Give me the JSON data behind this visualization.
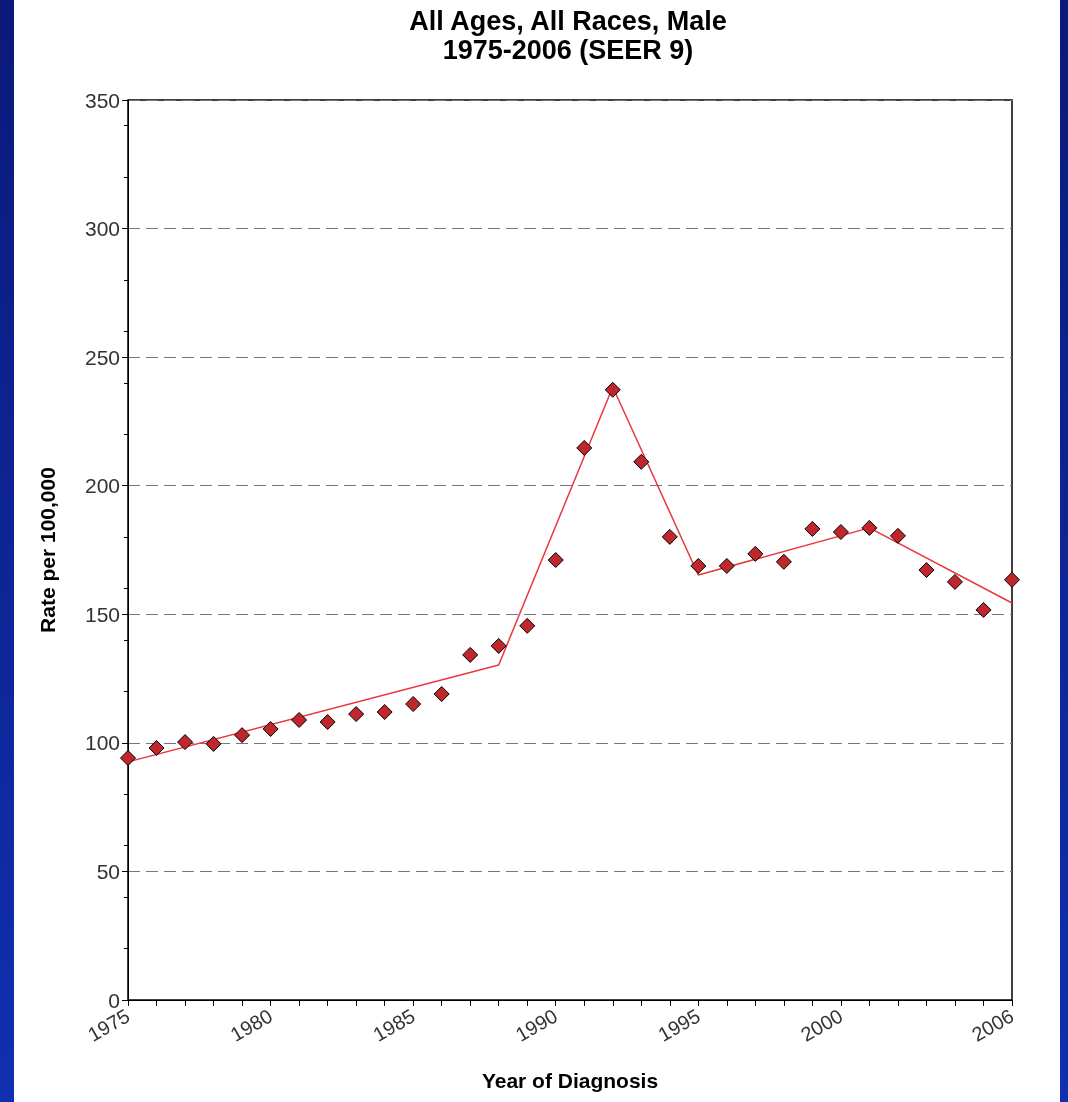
{
  "chart_data": {
    "type": "scatter",
    "title": "All Ages, All Races, Male",
    "subtitle": "1975-2006 (SEER 9)",
    "xlabel": "Year of Diagnosis",
    "ylabel": "Rate per 100,000",
    "x": [
      1975,
      1976,
      1977,
      1978,
      1979,
      1980,
      1981,
      1982,
      1983,
      1984,
      1985,
      1986,
      1987,
      1988,
      1989,
      1990,
      1991,
      1992,
      1993,
      1994,
      1995,
      1996,
      1997,
      1998,
      1999,
      2000,
      2001,
      2002,
      2003,
      2004,
      2005,
      2006
    ],
    "series": [
      {
        "type": "scatter",
        "color": "#c0272d",
        "marker": "diamond",
        "values": [
          94.1,
          98,
          100.3,
          99.6,
          103,
          105.4,
          108.9,
          108.1,
          111.2,
          112,
          115.1,
          119,
          134.2,
          137.7,
          145.5,
          171.1,
          214.7,
          237.3,
          209.3,
          180.1,
          168.8,
          168.8,
          173.5,
          170.4,
          183.2,
          182,
          183.6,
          180.5,
          167.2,
          162.6,
          151.7,
          163.4
        ]
      },
      {
        "type": "line",
        "color": "#e8383d",
        "marker": "none",
        "line_style": "solid",
        "x": [
          1975,
          1988,
          1992,
          1995,
          2001,
          2006
        ],
        "values": [
          92.6,
          130.3,
          238.4,
          165.3,
          183.6,
          154.4
        ]
      }
    ],
    "xlim": [
      1975,
      2006
    ],
    "xticks": [
      1975,
      1980,
      1985,
      1990,
      1995,
      2000,
      2006
    ],
    "ylim": [
      0,
      350
    ],
    "yticks": [
      0,
      50,
      100,
      150,
      200,
      250,
      300,
      350
    ],
    "grid": "y"
  }
}
